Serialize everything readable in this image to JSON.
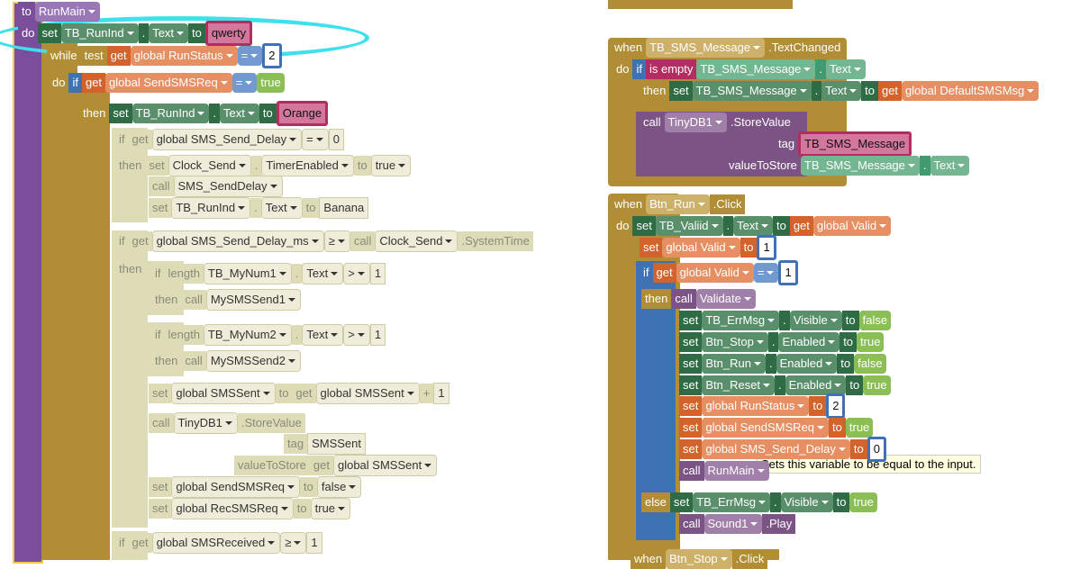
{
  "rows": [
    [
      "to",
      "RunMain"
    ],
    [
      "do",
      "set",
      "TB_RunInd",
      ".",
      "Text",
      "to",
      "qwerty"
    ],
    [
      "while",
      "test",
      "get",
      "global RunStatus",
      "=",
      "2"
    ],
    [
      "do",
      "if",
      "get",
      "global SendSMSReq",
      "=",
      "true"
    ],
    [
      "then",
      "set",
      "TB_RunInd",
      ".",
      "Text",
      "to",
      "Orange"
    ],
    [
      "if",
      "get",
      "global SMS_Send_Delay",
      "=",
      "0"
    ],
    [
      "then",
      "set",
      "Clock_Send",
      ".",
      "TimerEnabled",
      "to",
      "true"
    ],
    [
      "call",
      "SMS_SendDelay"
    ],
    [
      "set",
      "TB_RunInd",
      ".",
      "Text",
      "to",
      "Banana"
    ],
    [
      "if",
      "get",
      "global SMS_Send_Delay_ms",
      "≥",
      "call",
      "Clock_Send",
      ".SystemTime"
    ],
    [
      "then"
    ],
    [
      "if",
      "length",
      "TB_MyNum1",
      ".",
      "Text",
      ">",
      "1"
    ],
    [
      "then",
      "call",
      "MySMSSend1"
    ],
    [
      "if",
      "length",
      "TB_MyNum2",
      ".",
      "Text",
      ">",
      "1"
    ],
    [
      "then",
      "call",
      "MySMSSend2"
    ],
    [
      "set",
      "global SMSSent",
      "to",
      "get",
      "global SMSSent",
      "+",
      "1"
    ],
    [
      "call",
      "TinyDB1",
      ".StoreValue"
    ],
    [
      "tag",
      "SMSSent"
    ],
    [
      "valueToStore",
      "get",
      "global SMSSent"
    ],
    [
      "set",
      "global SendSMSReq",
      "to",
      "false"
    ],
    [
      "set",
      "global RecSMSReq",
      "to",
      "true"
    ],
    [
      "if",
      "get",
      "global SMSReceived",
      "≥",
      "1"
    ],
    [
      "when",
      "TB_SMS_Message",
      ".TextChanged"
    ],
    [
      "do",
      "if",
      "is empty",
      "TB_SMS_Message",
      ".",
      "Text"
    ],
    [
      "then",
      "set",
      "TB_SMS_Message",
      ".",
      "Text",
      "to",
      "get",
      "global DefaultSMSMsg"
    ],
    [
      "call",
      "TinyDB1",
      ".StoreValue"
    ],
    [
      "tag",
      "TB_SMS_Message"
    ],
    [
      "valueToStore",
      "TB_SMS_Message",
      ".",
      "Text"
    ],
    [
      "when",
      "Btn_Run",
      ".Click"
    ],
    [
      "do",
      "set",
      "TB_Valiid",
      ".",
      "Text",
      "to",
      "get",
      "global Valid"
    ],
    [
      "set",
      "global Valid",
      "to",
      "1"
    ],
    [
      "if",
      "get",
      "global Valid",
      "=",
      "1"
    ],
    [
      "then",
      "call",
      "Validate"
    ],
    [
      "set",
      "TB_ErrMsg",
      ".",
      "Visible",
      "to",
      "false"
    ],
    [
      "set",
      "Btn_Stop",
      ".",
      "Enabled",
      "to",
      "true"
    ],
    [
      "set",
      "Btn_Run",
      ".",
      "Enabled",
      "to",
      "false"
    ],
    [
      "set",
      "Btn_Reset",
      ".",
      "Enabled",
      "to",
      "true"
    ],
    [
      "set",
      "global RunStatus",
      "to",
      "2"
    ],
    [
      "set",
      "global SendSMSReq",
      "to",
      "true"
    ],
    [
      "set",
      "global SMS_Send_Delay",
      "to",
      "0"
    ],
    [
      "call",
      "RunMain"
    ],
    [
      "else",
      "set",
      "TB_ErrMsg",
      ".",
      "Visible",
      "to",
      "true"
    ],
    [
      "call",
      "Sound1",
      ".Play"
    ],
    [
      "when",
      "Btn_Stop",
      ".Click"
    ]
  ],
  "tooltip": "Sets this variable to be equal to the input."
}
